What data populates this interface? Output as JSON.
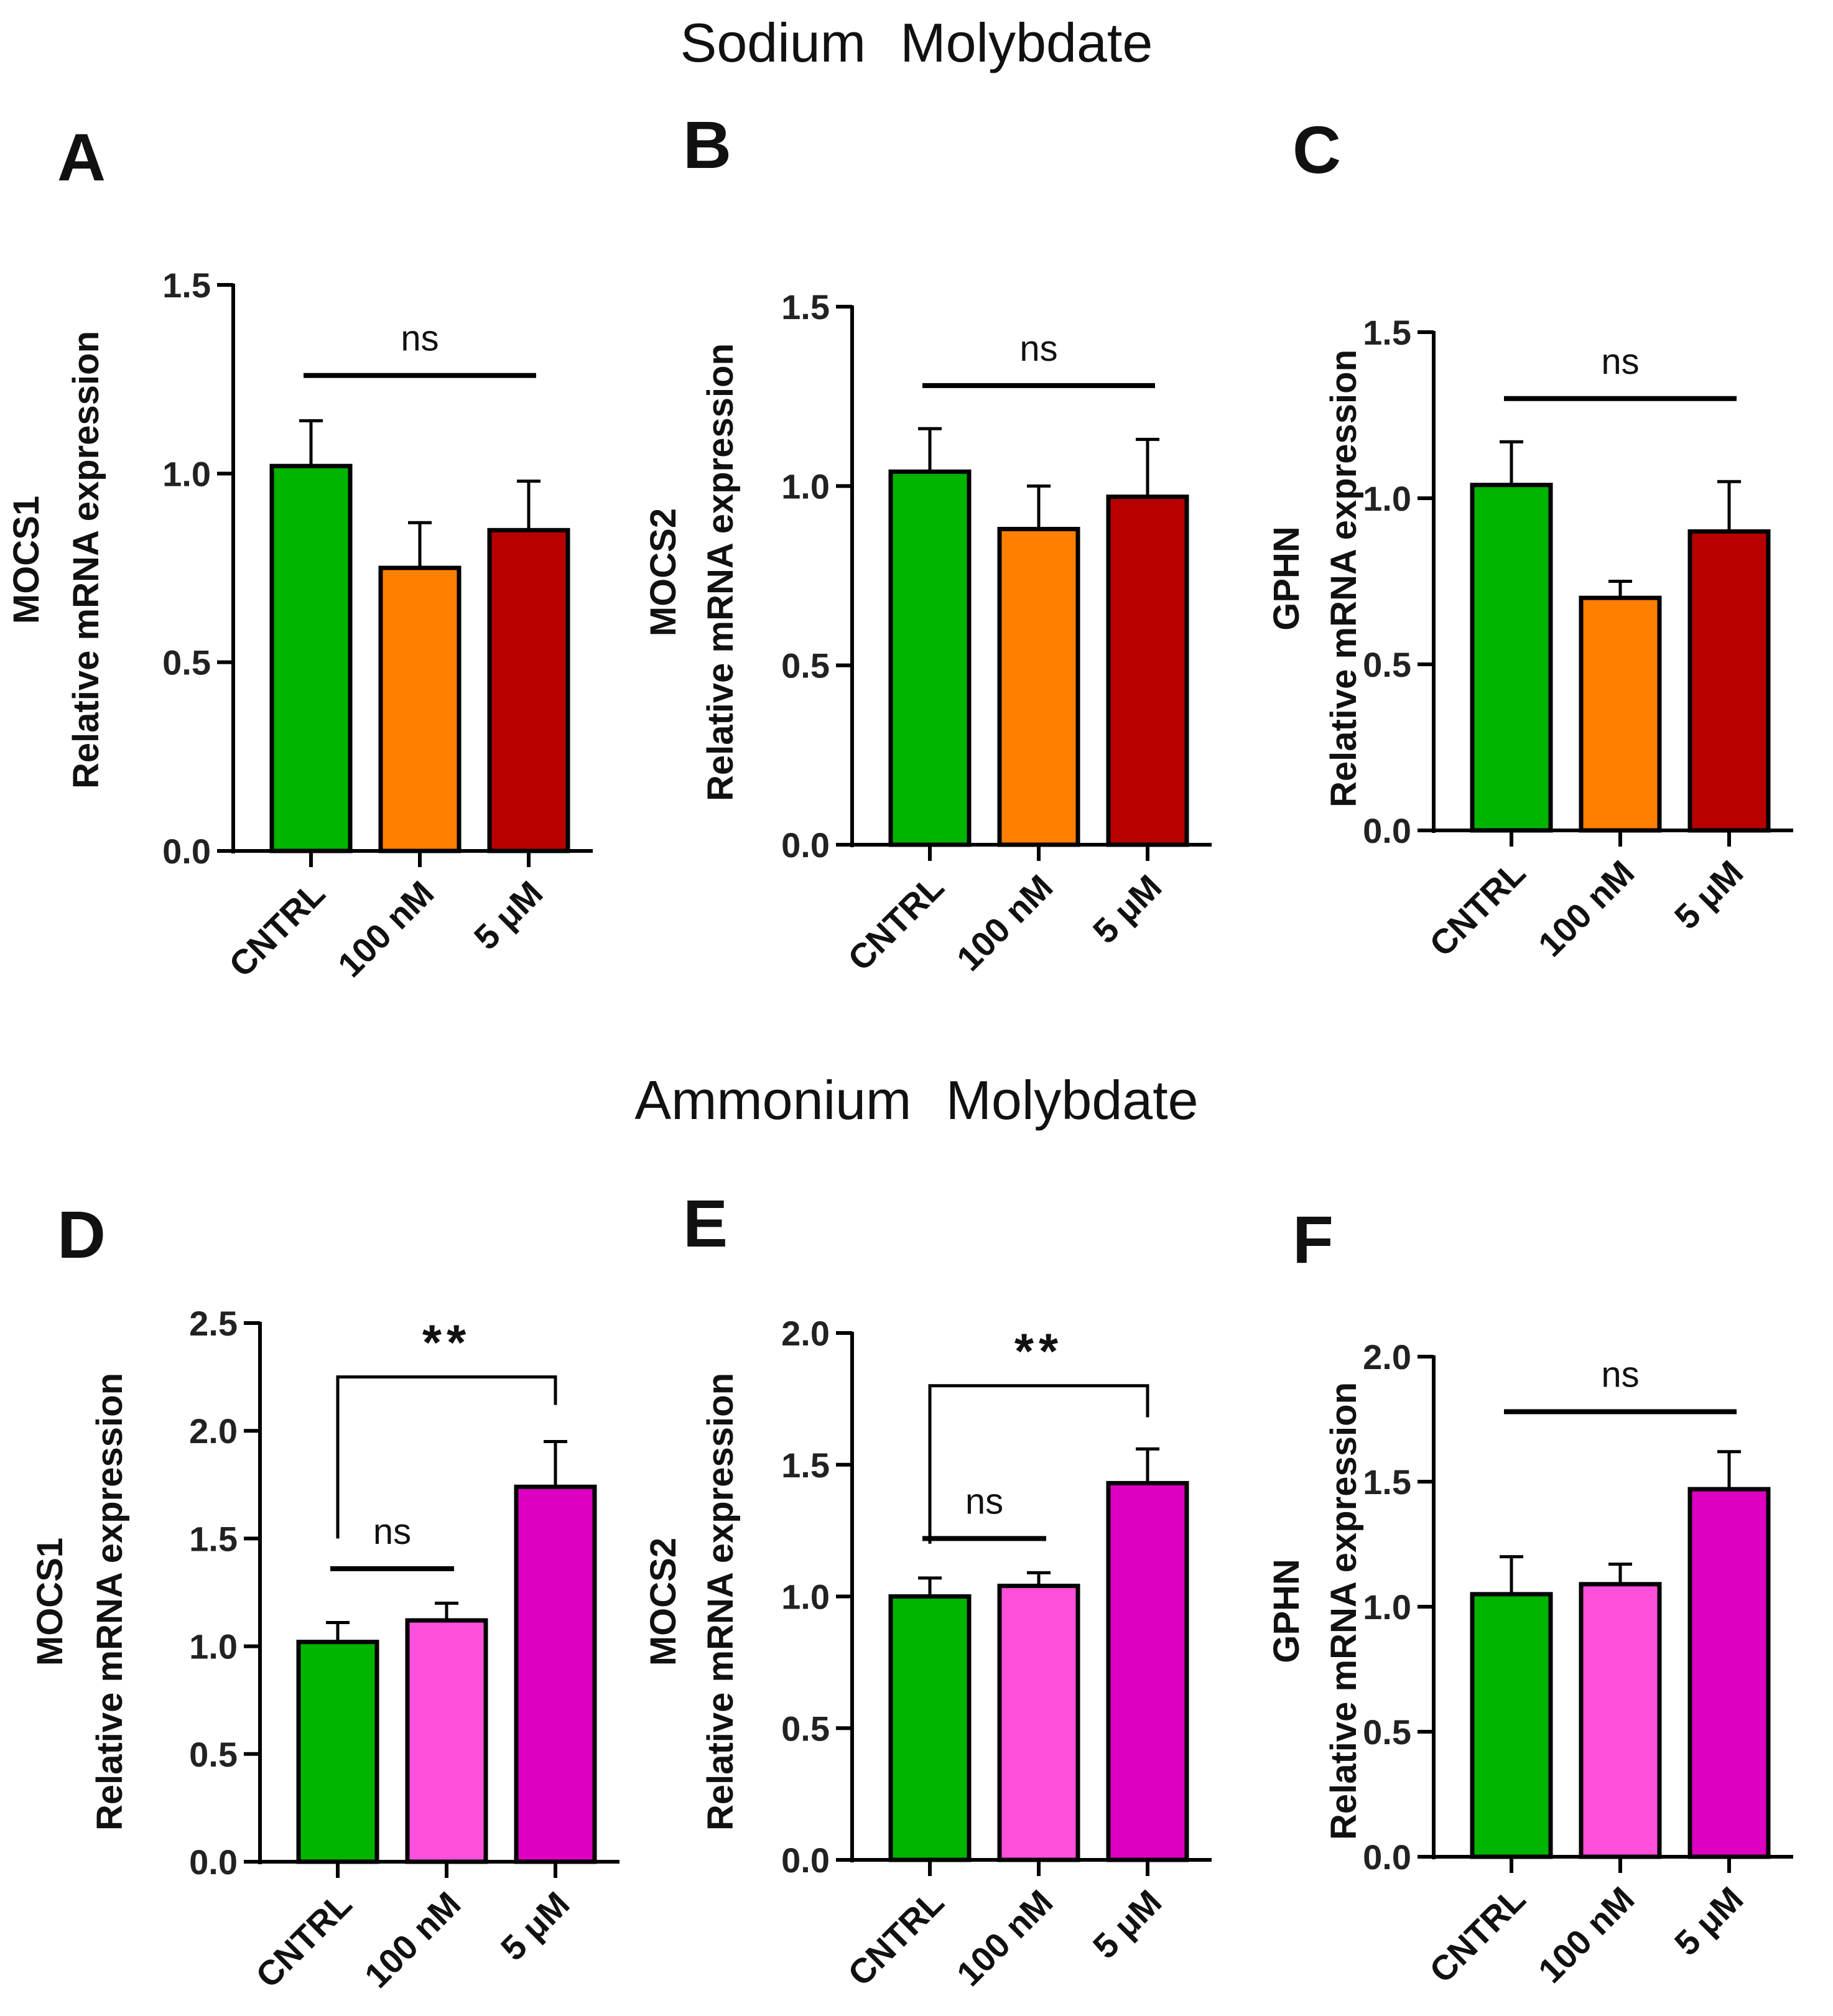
{
  "titles": {
    "top": "Sodium   Molybdate",
    "bottom": "Ammonium   Molybdate"
  },
  "colors": {
    "green": "#00B400",
    "orange": "#FF8000",
    "darkred": "#B80000",
    "pink": "#FF50DC",
    "magenta": "#DD00C0",
    "axis": "#000000"
  },
  "chart_data": [
    {
      "panel": "A",
      "type": "bar",
      "title": "",
      "gene": "MOCS1",
      "ylabel": "Relative mRNA expression",
      "categories": [
        "CNTRL",
        "100 nM",
        "5 μM"
      ],
      "values": [
        1.02,
        0.75,
        0.85
      ],
      "errors": [
        0.12,
        0.12,
        0.13
      ],
      "colors": [
        "#00B400",
        "#FF8000",
        "#B80000"
      ],
      "ylim": [
        0,
        1.5
      ],
      "yticks": [
        "0.0",
        "0.5",
        "1.0",
        "1.5"
      ],
      "ytick_values": [
        0,
        0.5,
        1.0,
        1.5
      ],
      "annotations": [
        {
          "type": "line",
          "from": 0,
          "to": 2,
          "text": "ns",
          "y": 1.26
        }
      ]
    },
    {
      "panel": "B",
      "type": "bar",
      "title": "",
      "gene": "MOCS2",
      "ylabel": "Relative mRNA expression",
      "categories": [
        "CNTRL",
        "100 nM",
        "5 μM"
      ],
      "values": [
        1.04,
        0.88,
        0.97
      ],
      "errors": [
        0.12,
        0.12,
        0.16
      ],
      "colors": [
        "#00B400",
        "#FF8000",
        "#B80000"
      ],
      "ylim": [
        0,
        1.5
      ],
      "yticks": [
        "0.0",
        "0.5",
        "1.0",
        "1.5"
      ],
      "ytick_values": [
        0,
        0.5,
        1.0,
        1.5
      ],
      "annotations": [
        {
          "type": "line",
          "from": 0,
          "to": 2,
          "text": "ns",
          "y": 1.28
        }
      ]
    },
    {
      "panel": "C",
      "type": "bar",
      "title": "",
      "gene": "GPHN",
      "ylabel": "Relative mRNA expression",
      "categories": [
        "CNTRL",
        "100 nM",
        "5 μM"
      ],
      "values": [
        1.04,
        0.7,
        0.9
      ],
      "errors": [
        0.13,
        0.05,
        0.15
      ],
      "colors": [
        "#00B400",
        "#FF8000",
        "#B80000"
      ],
      "ylim": [
        0,
        1.5
      ],
      "yticks": [
        "0.0",
        "0.5",
        "1.0",
        "1.5"
      ],
      "ytick_values": [
        0,
        0.5,
        1.0,
        1.5
      ],
      "annotations": [
        {
          "type": "line",
          "from": 0,
          "to": 2,
          "text": "ns",
          "y": 1.3
        }
      ]
    },
    {
      "panel": "D",
      "type": "bar",
      "title": "",
      "gene": "MOCS1",
      "ylabel": "Relative mRNA expression",
      "categories": [
        "CNTRL",
        "100 nM",
        "5 μM"
      ],
      "values": [
        1.02,
        1.12,
        1.74
      ],
      "errors": [
        0.09,
        0.08,
        0.21
      ],
      "colors": [
        "#00B400",
        "#FF50DC",
        "#DD00C0"
      ],
      "ylim": [
        0,
        2.5
      ],
      "yticks": [
        "0.0",
        "0.5",
        "1.0",
        "1.5",
        "2.0",
        "2.5"
      ],
      "ytick_values": [
        0,
        0.5,
        1.0,
        1.5,
        2.0,
        2.5
      ],
      "annotations": [
        {
          "type": "bracket",
          "from": 0,
          "to": 2,
          "text": "**",
          "y": 2.25,
          "drop_from": 1.5,
          "drop_to": 2.12
        },
        {
          "type": "line",
          "from": 0,
          "to": 1,
          "text": "ns",
          "y": 1.36
        }
      ]
    },
    {
      "panel": "E",
      "type": "bar",
      "title": "",
      "gene": "MOCS2",
      "ylabel": "Relative mRNA expression",
      "categories": [
        "CNTRL",
        "100 nM",
        "5 μM"
      ],
      "values": [
        1.0,
        1.04,
        1.43
      ],
      "errors": [
        0.07,
        0.05,
        0.13
      ],
      "colors": [
        "#00B400",
        "#FF50DC",
        "#DD00C0"
      ],
      "ylim": [
        0,
        2.0
      ],
      "yticks": [
        "0.0",
        "0.5",
        "1.0",
        "1.5",
        "2.0"
      ],
      "ytick_values": [
        0,
        0.5,
        1.0,
        1.5,
        2.0
      ],
      "annotations": [
        {
          "type": "bracket",
          "from": 0,
          "to": 2,
          "text": "**",
          "y": 1.8,
          "drop_from": 1.2,
          "drop_to": 1.68
        },
        {
          "type": "line",
          "from": 0,
          "to": 1,
          "text": "ns",
          "y": 1.22
        }
      ]
    },
    {
      "panel": "F",
      "type": "bar",
      "title": "",
      "gene": "GPHN",
      "ylabel": "Relative mRNA expression",
      "categories": [
        "CNTRL",
        "100 nM",
        "5 μM"
      ],
      "values": [
        1.05,
        1.09,
        1.47
      ],
      "errors": [
        0.15,
        0.08,
        0.15
      ],
      "colors": [
        "#00B400",
        "#FF50DC",
        "#DD00C0"
      ],
      "ylim": [
        0,
        2.0
      ],
      "yticks": [
        "0.0",
        "0.5",
        "1.0",
        "1.5",
        "2.0"
      ],
      "ytick_values": [
        0,
        0.5,
        1.0,
        1.5,
        2.0
      ],
      "annotations": [
        {
          "type": "line",
          "from": 0,
          "to": 2,
          "text": "ns",
          "y": 1.78
        }
      ]
    }
  ]
}
